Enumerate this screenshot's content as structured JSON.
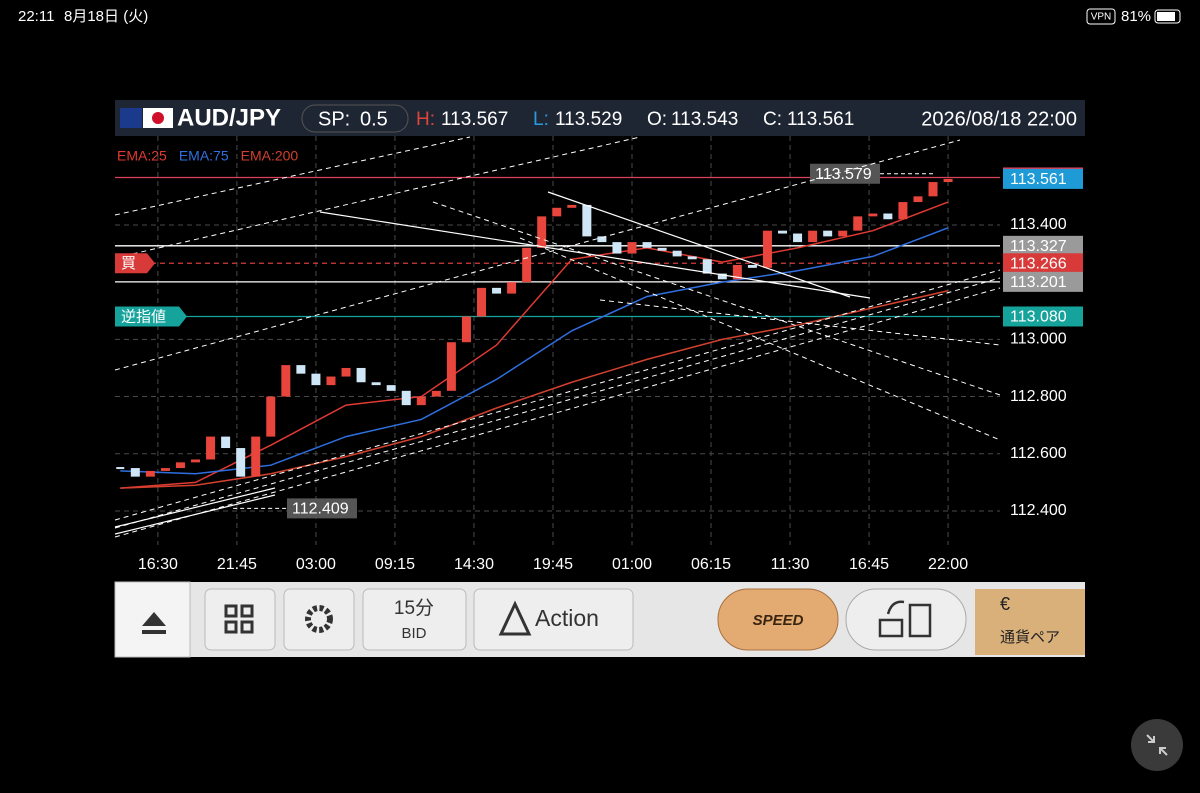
{
  "status_bar": {
    "time": "22:11",
    "date": "8月18日 (火)",
    "vpn": "VPN",
    "battery": "81%"
  },
  "header": {
    "pair": "AUD/JPY",
    "spread_label": "SP:",
    "spread": 0.5,
    "high_label": "H:",
    "high": 113.567,
    "low_label": "L:",
    "low": 113.529,
    "open_label": "O:",
    "open": 113.543,
    "close_label": "C:",
    "close": 113.561,
    "datetime": "2026/08/18 22:00"
  },
  "chart_data": {
    "type": "candlestick",
    "x": [
      -10,
      -6,
      -2,
      2,
      6,
      10,
      14,
      18,
      22,
      26,
      30,
      34,
      38,
      42,
      46,
      50,
      54,
      58,
      62,
      66,
      70,
      74,
      78,
      82,
      86,
      90,
      94,
      98,
      102,
      106,
      110,
      114,
      118,
      122,
      126,
      130,
      134,
      138,
      142,
      146,
      150,
      154,
      158,
      162,
      166,
      170,
      174,
      178,
      182,
      186,
      190,
      194,
      198,
      202,
      206,
      210
    ],
    "values": [
      112.55,
      112.52,
      112.54,
      112.55,
      112.57,
      112.58,
      112.66,
      112.62,
      112.52,
      112.66,
      112.8,
      112.91,
      112.88,
      112.84,
      112.87,
      112.9,
      112.85,
      112.84,
      112.82,
      112.77,
      112.8,
      112.82,
      112.99,
      113.08,
      113.18,
      113.16,
      113.2,
      113.32,
      113.43,
      113.46,
      113.47,
      113.36,
      113.34,
      113.3,
      113.34,
      113.32,
      113.31,
      113.29,
      113.28,
      113.23,
      113.21,
      113.26,
      113.25,
      113.38,
      113.37,
      113.34,
      113.38,
      113.36,
      113.38,
      113.43,
      113.44,
      113.42,
      113.48,
      113.5,
      113.55,
      113.561
    ],
    "up_color": "#e8453c",
    "down_color": "#cfe6f7",
    "series": [
      {
        "name": "EMA:25",
        "color": "#e03a32",
        "x": [
          -10,
          10,
          30,
          50,
          70,
          90,
          110,
          130,
          150,
          170,
          190,
          210
        ],
        "values": [
          112.48,
          112.5,
          112.63,
          112.77,
          112.8,
          112.98,
          113.28,
          113.32,
          113.27,
          113.32,
          113.38,
          113.48
        ]
      },
      {
        "name": "EMA:75",
        "color": "#2f6fe0",
        "x": [
          -10,
          10,
          30,
          50,
          70,
          90,
          110,
          130,
          150,
          170,
          190,
          210
        ],
        "values": [
          112.54,
          112.53,
          112.56,
          112.66,
          112.72,
          112.86,
          113.03,
          113.15,
          113.2,
          113.24,
          113.29,
          113.39
        ]
      },
      {
        "name": "EMA:200",
        "color": "#d2402e",
        "x": [
          -10,
          10,
          30,
          50,
          70,
          90,
          110,
          130,
          150,
          170,
          190,
          210
        ],
        "values": [
          112.48,
          112.49,
          112.53,
          112.59,
          112.66,
          112.76,
          112.85,
          112.93,
          113.0,
          113.05,
          113.11,
          113.17
        ]
      }
    ],
    "xlim": [
      -11.4,
      223.8
    ],
    "ylim": [
      112.281,
      113.711
    ],
    "xticks": [
      {
        "value": 0,
        "label": "16:30"
      },
      {
        "value": 21,
        "label": "21:45"
      },
      {
        "value": 42,
        "label": "03:00"
      },
      {
        "value": 63,
        "label": "09:15"
      },
      {
        "value": 84,
        "label": "14:30"
      },
      {
        "value": 105,
        "label": "19:45"
      },
      {
        "value": 126,
        "label": "01:00"
      },
      {
        "value": 147,
        "label": "06:15"
      },
      {
        "value": 168,
        "label": "11:30"
      },
      {
        "value": 189,
        "label": "16:45"
      },
      {
        "value": 210,
        "label": "22:00"
      }
    ],
    "yticks": [
      {
        "value": 112.4,
        "label": "112.400"
      },
      {
        "value": 112.6,
        "label": "112.600"
      },
      {
        "value": 112.8,
        "label": "112.800"
      },
      {
        "value": 113.0,
        "label": "113.000"
      },
      {
        "value": 113.4,
        "label": "113.400"
      }
    ],
    "grid": true,
    "price_lines": [
      {
        "value": 113.566,
        "color": "#d9435a",
        "line": true
      },
      {
        "value": 113.561,
        "color": "#1e9bd7",
        "line": false
      },
      {
        "value": 113.327,
        "color": "#9a9a9a",
        "line": true
      },
      {
        "value": 113.266,
        "color": "#d83a3a",
        "line": true,
        "tag": "買"
      },
      {
        "value": 113.201,
        "color": "#9a9a9a",
        "line": true
      },
      {
        "value": {
          "value": 113.08,
          "label": "113.080"
        },
        "color": "#16a39b",
        "line": true,
        "tag": "逆指値"
      }
    ],
    "annotations": [
      {
        "x": 206,
        "value": 113.579
      },
      {
        "x": 20,
        "value": 112.409
      }
    ]
  },
  "toolbar": {
    "timeframe": "15分",
    "price_type": "BID",
    "action": "Action",
    "speed": "SPEED",
    "pairs": "通貨ペア"
  }
}
